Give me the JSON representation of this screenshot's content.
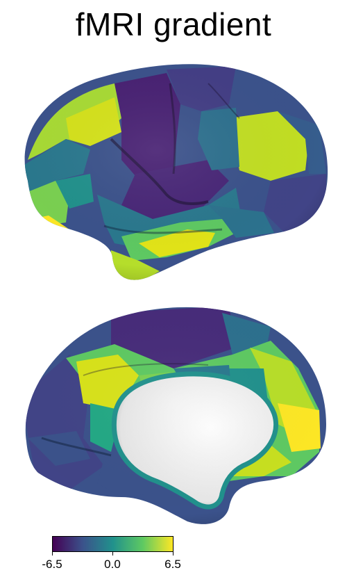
{
  "title": "fMRI gradient",
  "colormap": {
    "name": "viridis",
    "stops": [
      "#440154",
      "#3b528b",
      "#21918c",
      "#5ec962",
      "#fde725"
    ]
  },
  "colorbar": {
    "min": -6.5,
    "max": 6.5,
    "ticks": [
      {
        "value": -6.5,
        "label": "-6.5"
      },
      {
        "value": 0.0,
        "label": "0.0"
      },
      {
        "value": 6.5,
        "label": "6.5"
      }
    ]
  },
  "views": [
    {
      "name": "lateral"
    },
    {
      "name": "medial"
    }
  ]
}
